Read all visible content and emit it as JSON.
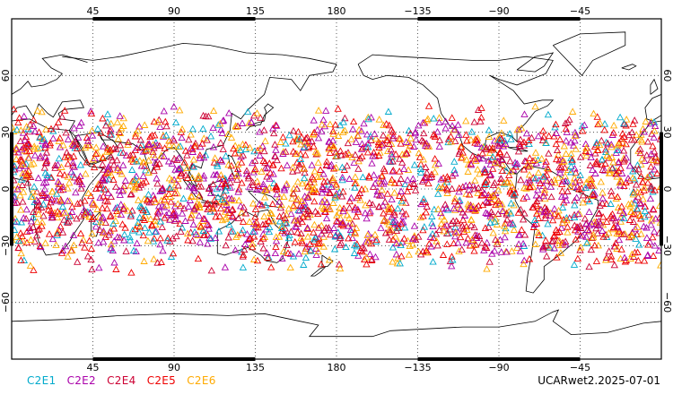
{
  "chart_data": {
    "type": "scatter",
    "projection": "cylindrical-equidistant",
    "center_longitude": 180,
    "xlim": [
      0,
      360
    ],
    "ylim": [
      -90,
      90
    ],
    "x_ticks": [
      {
        "lon": 45,
        "label": "45"
      },
      {
        "lon": 90,
        "label": "90"
      },
      {
        "lon": 135,
        "label": "135"
      },
      {
        "lon": 180,
        "label": "180"
      },
      {
        "lon": 225,
        "label": "−135"
      },
      {
        "lon": 270,
        "label": "−90"
      },
      {
        "lon": 315,
        "label": "−45"
      }
    ],
    "y_ticks": [
      {
        "lat": 60,
        "label": "60"
      },
      {
        "lat": 30,
        "label": "30"
      },
      {
        "lat": 0,
        "label": "0"
      },
      {
        "lat": -30,
        "label": "−30"
      },
      {
        "lat": -60,
        "label": "−60"
      }
    ],
    "grid": true,
    "marker": "open-triangle",
    "coverage_lat_range": [
      -45,
      45
    ],
    "series": [
      {
        "name": "C2E1",
        "color": "#00aacc"
      },
      {
        "name": "C2E2",
        "color": "#aa00aa"
      },
      {
        "name": "C2E4",
        "color": "#cc0033"
      },
      {
        "name": "C2E5",
        "color": "#ee0000"
      },
      {
        "name": "C2E6",
        "color": "#ffaa00"
      }
    ]
  },
  "product_label": "UCARwet2.2025-07-01"
}
